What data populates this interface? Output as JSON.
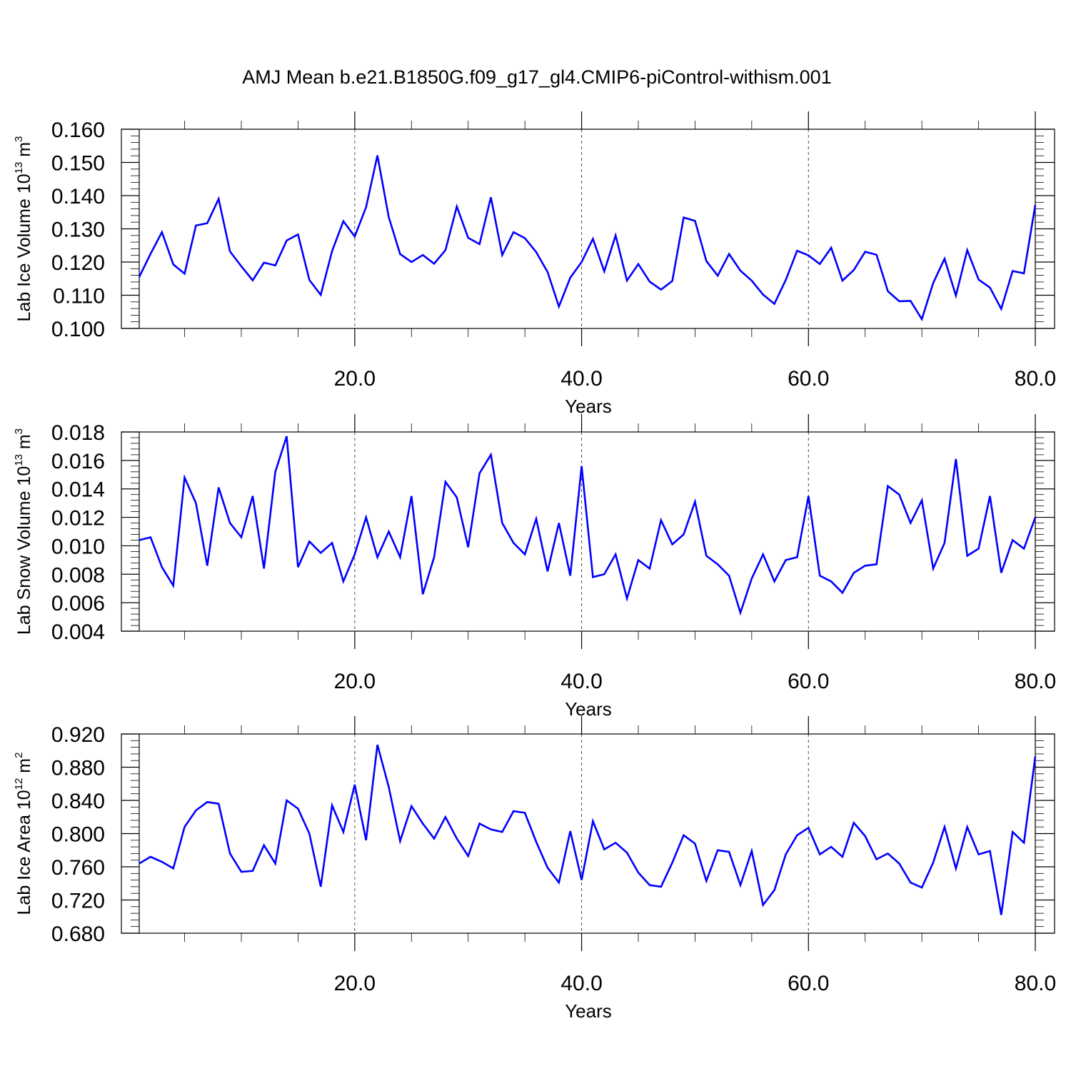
{
  "title": "AMJ Mean b.e21.B1850G.f09_g17_gl4.CMIP6-piControl-withism.001",
  "colors": {
    "series": "#0000ff",
    "axis": "#000000"
  },
  "chart_data": [
    {
      "type": "line",
      "ylabel": "Lab Ice Volume 10",
      "ylabel_exp": "13",
      "ylabel_unit": " m",
      "ylabel_unit_exp": "3",
      "xlabel": "Years",
      "xlim": [
        1,
        80
      ],
      "ylim": [
        0.1,
        0.16
      ],
      "yticks": [
        0.1,
        0.11,
        0.12,
        0.13,
        0.14,
        0.15,
        0.16
      ],
      "ytick_labels": [
        "0.100",
        "0.110",
        "0.120",
        "0.130",
        "0.140",
        "0.150",
        "0.160"
      ],
      "xticks": [
        20,
        40,
        60,
        80
      ],
      "xtick_labels": [
        "20.0",
        "40.0",
        "60.0",
        "80.0"
      ],
      "grid": "vertical-dashed",
      "series": [
        {
          "x": [
            1,
            2,
            3,
            4,
            5,
            6,
            7,
            8,
            9,
            10,
            11,
            12,
            13,
            14,
            15,
            16,
            17,
            18,
            19,
            20,
            21,
            22,
            23,
            24,
            25,
            26,
            27,
            28,
            29,
            30,
            31,
            32,
            33,
            34,
            35,
            36,
            37,
            38,
            39,
            40,
            41,
            42,
            43,
            44,
            45,
            46,
            47,
            48,
            49,
            50,
            51,
            52,
            53,
            54,
            55,
            56,
            57,
            58,
            59,
            60,
            61,
            62,
            63,
            64,
            65,
            66,
            67,
            68,
            69,
            70,
            71,
            72,
            73,
            74,
            75,
            76,
            77,
            78,
            79,
            80
          ],
          "values": [
            0.1155,
            0.1225,
            0.129,
            0.1193,
            0.1165,
            0.131,
            0.1317,
            0.139,
            0.1232,
            0.1187,
            0.1145,
            0.1198,
            0.119,
            0.1265,
            0.1283,
            0.1146,
            0.1101,
            0.1233,
            0.1323,
            0.1277,
            0.1365,
            0.1521,
            0.1335,
            0.1224,
            0.12,
            0.1221,
            0.1195,
            0.1236,
            0.1367,
            0.1273,
            0.1254,
            0.1395,
            0.1221,
            0.129,
            0.1272,
            0.123,
            0.117,
            0.1066,
            0.1153,
            0.12,
            0.127,
            0.1172,
            0.128,
            0.1144,
            0.1194,
            0.1141,
            0.1117,
            0.1143,
            0.1334,
            0.1324,
            0.1203,
            0.1159,
            0.1224,
            0.1174,
            0.1144,
            0.1102,
            0.1074,
            0.1146,
            0.1234,
            0.122,
            0.1194,
            0.1243,
            0.1144,
            0.1176,
            0.1231,
            0.1222,
            0.1112,
            0.1082,
            0.1083,
            0.1028,
            0.1137,
            0.121,
            0.1099,
            0.1236,
            0.1147,
            0.1123,
            0.1059,
            0.1173,
            0.1166,
            0.1372
          ]
        }
      ]
    },
    {
      "type": "line",
      "ylabel": "Lab Snow Volume 10",
      "ylabel_exp": "13",
      "ylabel_unit": " m",
      "ylabel_unit_exp": "3",
      "xlabel": "Years",
      "xlim": [
        1,
        80
      ],
      "ylim": [
        0.004,
        0.018
      ],
      "yticks": [
        0.004,
        0.006,
        0.008,
        0.01,
        0.012,
        0.014,
        0.016,
        0.018
      ],
      "ytick_labels": [
        "0.004",
        "0.006",
        "0.008",
        "0.010",
        "0.012",
        "0.014",
        "0.016",
        "0.018"
      ],
      "xticks": [
        20,
        40,
        60,
        80
      ],
      "xtick_labels": [
        "20.0",
        "40.0",
        "60.0",
        "80.0"
      ],
      "grid": "vertical-dashed",
      "series": [
        {
          "x": [
            1,
            2,
            3,
            4,
            5,
            6,
            7,
            8,
            9,
            10,
            11,
            12,
            13,
            14,
            15,
            16,
            17,
            18,
            19,
            20,
            21,
            22,
            23,
            24,
            25,
            26,
            27,
            28,
            29,
            30,
            31,
            32,
            33,
            34,
            35,
            36,
            37,
            38,
            39,
            40,
            41,
            42,
            43,
            44,
            45,
            46,
            47,
            48,
            49,
            50,
            51,
            52,
            53,
            54,
            55,
            56,
            57,
            58,
            59,
            60,
            61,
            62,
            63,
            64,
            65,
            66,
            67,
            68,
            69,
            70,
            71,
            72,
            73,
            74,
            75,
            76,
            77,
            78,
            79,
            80
          ],
          "values": [
            0.0104,
            0.0106,
            0.0085,
            0.0072,
            0.0148,
            0.013,
            0.0086,
            0.0141,
            0.0116,
            0.0106,
            0.0135,
            0.0084,
            0.0152,
            0.0177,
            0.0085,
            0.0103,
            0.0095,
            0.0102,
            0.0075,
            0.0094,
            0.012,
            0.0092,
            0.011,
            0.0092,
            0.0135,
            0.0066,
            0.0092,
            0.0145,
            0.0134,
            0.0099,
            0.0151,
            0.0164,
            0.0116,
            0.0102,
            0.0094,
            0.0119,
            0.0082,
            0.0116,
            0.0079,
            0.0156,
            0.0078,
            0.008,
            0.0094,
            0.0063,
            0.009,
            0.0084,
            0.0118,
            0.0101,
            0.0108,
            0.0131,
            0.0093,
            0.0087,
            0.0079,
            0.0053,
            0.0077,
            0.0094,
            0.0075,
            0.009,
            0.0092,
            0.0135,
            0.0079,
            0.0075,
            0.0067,
            0.0081,
            0.0086,
            0.0087,
            0.0142,
            0.0136,
            0.0116,
            0.0132,
            0.0084,
            0.0102,
            0.0161,
            0.0093,
            0.0098,
            0.0135,
            0.0081,
            0.0104,
            0.0098,
            0.012
          ]
        }
      ]
    },
    {
      "type": "line",
      "ylabel": "Lab Ice Area 10",
      "ylabel_exp": "12",
      "ylabel_unit": " m",
      "ylabel_unit_exp": "2",
      "xlabel": "Years",
      "xlim": [
        1,
        80
      ],
      "ylim": [
        0.68,
        0.92
      ],
      "yticks": [
        0.68,
        0.72,
        0.76,
        0.8,
        0.84,
        0.88,
        0.92
      ],
      "ytick_labels": [
        "0.680",
        "0.720",
        "0.760",
        "0.800",
        "0.840",
        "0.880",
        "0.920"
      ],
      "xticks": [
        20,
        40,
        60,
        80
      ],
      "xtick_labels": [
        "20.0",
        "40.0",
        "60.0",
        "80.0"
      ],
      "grid": "vertical-dashed",
      "series": [
        {
          "x": [
            1,
            2,
            3,
            4,
            5,
            6,
            7,
            8,
            9,
            10,
            11,
            12,
            13,
            14,
            15,
            16,
            17,
            18,
            19,
            20,
            21,
            22,
            23,
            24,
            25,
            26,
            27,
            28,
            29,
            30,
            31,
            32,
            33,
            34,
            35,
            36,
            37,
            38,
            39,
            40,
            41,
            42,
            43,
            44,
            45,
            46,
            47,
            48,
            49,
            50,
            51,
            52,
            53,
            54,
            55,
            56,
            57,
            58,
            59,
            60,
            61,
            62,
            63,
            64,
            65,
            66,
            67,
            68,
            69,
            70,
            71,
            72,
            73,
            74,
            75,
            76,
            77,
            78,
            79,
            80
          ],
          "values": [
            0.764,
            0.772,
            0.766,
            0.758,
            0.808,
            0.828,
            0.838,
            0.836,
            0.776,
            0.754,
            0.755,
            0.786,
            0.764,
            0.84,
            0.83,
            0.8,
            0.736,
            0.834,
            0.802,
            0.859,
            0.792,
            0.907,
            0.856,
            0.791,
            0.833,
            0.812,
            0.794,
            0.82,
            0.794,
            0.773,
            0.812,
            0.805,
            0.802,
            0.827,
            0.825,
            0.79,
            0.759,
            0.741,
            0.803,
            0.744,
            0.815,
            0.781,
            0.789,
            0.777,
            0.753,
            0.738,
            0.736,
            0.765,
            0.798,
            0.788,
            0.743,
            0.78,
            0.778,
            0.738,
            0.779,
            0.714,
            0.732,
            0.775,
            0.798,
            0.807,
            0.775,
            0.784,
            0.772,
            0.813,
            0.797,
            0.769,
            0.776,
            0.764,
            0.741,
            0.735,
            0.765,
            0.808,
            0.758,
            0.808,
            0.775,
            0.779,
            0.702,
            0.802,
            0.789,
            0.893
          ]
        }
      ]
    }
  ]
}
